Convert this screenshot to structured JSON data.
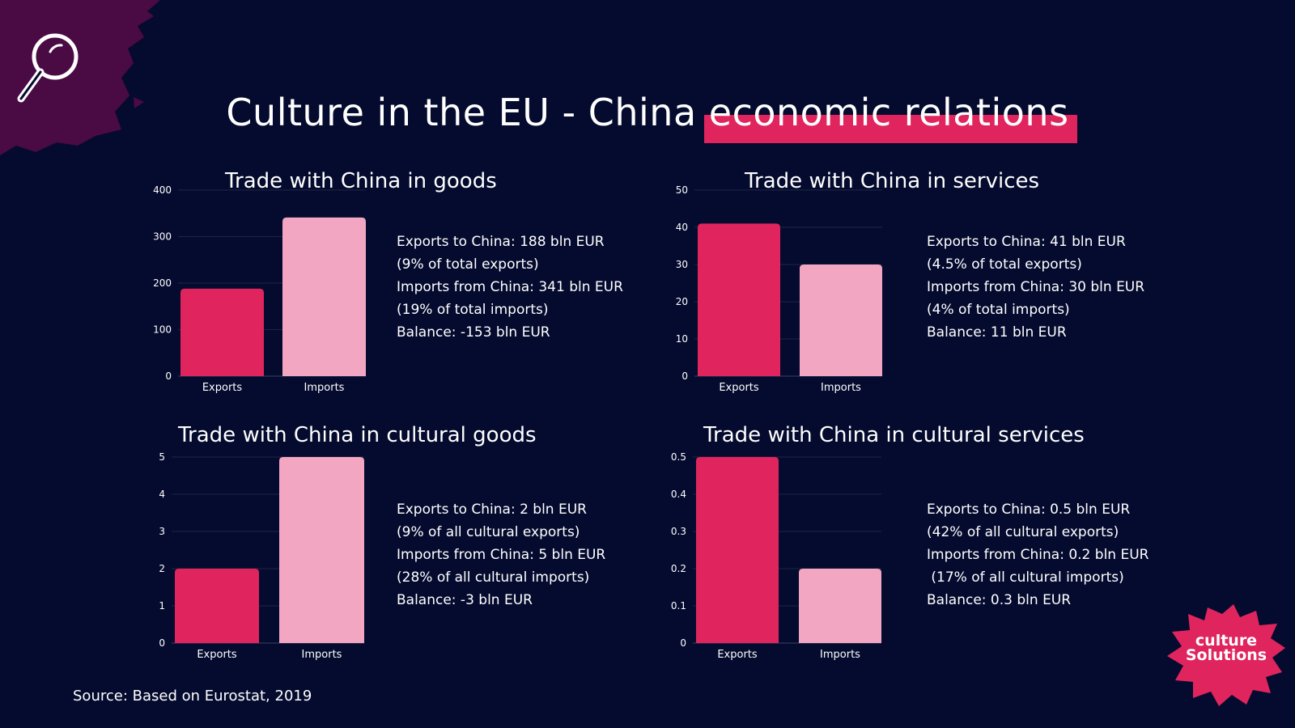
{
  "colors": {
    "background": "#050b2e",
    "accent": "#e0245e",
    "exports": "#e0245e",
    "imports": "#f2a6c2",
    "splash": "#4a0a44"
  },
  "title": {
    "part1": "Culture in the EU - China ",
    "highlight": "economic relations"
  },
  "source": "Source: Based on Eurostat, 2019",
  "logo": {
    "line1": "culture",
    "line2": "Solutions"
  },
  "icons": {
    "top_left": "magnifier-icon"
  },
  "panels": [
    {
      "title": "Trade with China in goods",
      "info": [
        "Exports to China: 188 bln EUR",
        "(9% of total exports)",
        "Imports from China: 341 bln EUR",
        "(19% of total imports)",
        "Balance: -153 bln EUR"
      ]
    },
    {
      "title": "Trade with China in services",
      "info": [
        "Exports to China: 41 bln EUR",
        "(4.5% of total exports)",
        "Imports from China: 30 bln EUR",
        "(4% of total imports)",
        "Balance: 11 bln EUR"
      ]
    },
    {
      "title": "Trade with China in cultural goods",
      "info": [
        "Exports to China: 2 bln EUR",
        "(9% of all cultural exports)",
        "Imports from China: 5 bln EUR",
        "(28% of all cultural imports)",
        "Balance: -3 bln EUR"
      ]
    },
    {
      "title": "Trade with China in cultural services",
      "info": [
        "Exports to China: 0.5 bln EUR",
        "(42% of all cultural exports)",
        "Imports from China: 0.2 bln EUR",
        " (17% of all cultural imports)",
        "Balance: 0.3 bln EUR"
      ]
    }
  ],
  "chart_data": [
    {
      "type": "bar",
      "title": "Trade with China in goods",
      "categories": [
        "Exports",
        "Imports"
      ],
      "values": [
        188,
        341
      ],
      "ylim": [
        0,
        400
      ],
      "ticks": [
        "0",
        "100",
        "200",
        "300",
        "400"
      ],
      "grid": true
    },
    {
      "type": "bar",
      "title": "Trade with China in services",
      "categories": [
        "Exports",
        "Imports"
      ],
      "values": [
        41,
        30
      ],
      "ylim": [
        0,
        50
      ],
      "ticks": [
        "0",
        "10",
        "20",
        "30",
        "40",
        "50"
      ],
      "grid": true
    },
    {
      "type": "bar",
      "title": "Trade with China in cultural goods",
      "categories": [
        "Exports",
        "Imports"
      ],
      "values": [
        2,
        5
      ],
      "ylim": [
        0,
        5
      ],
      "ticks": [
        "0",
        "1",
        "2",
        "3",
        "4",
        "5"
      ],
      "grid": true
    },
    {
      "type": "bar",
      "title": "Trade with China in cultural services",
      "categories": [
        "Exports",
        "Imports"
      ],
      "values": [
        0.5,
        0.2
      ],
      "ylim": [
        0,
        0.5
      ],
      "ticks": [
        "0",
        "0.1",
        "0.2",
        "0.3",
        "0.4",
        "0.5"
      ],
      "grid": true
    }
  ]
}
